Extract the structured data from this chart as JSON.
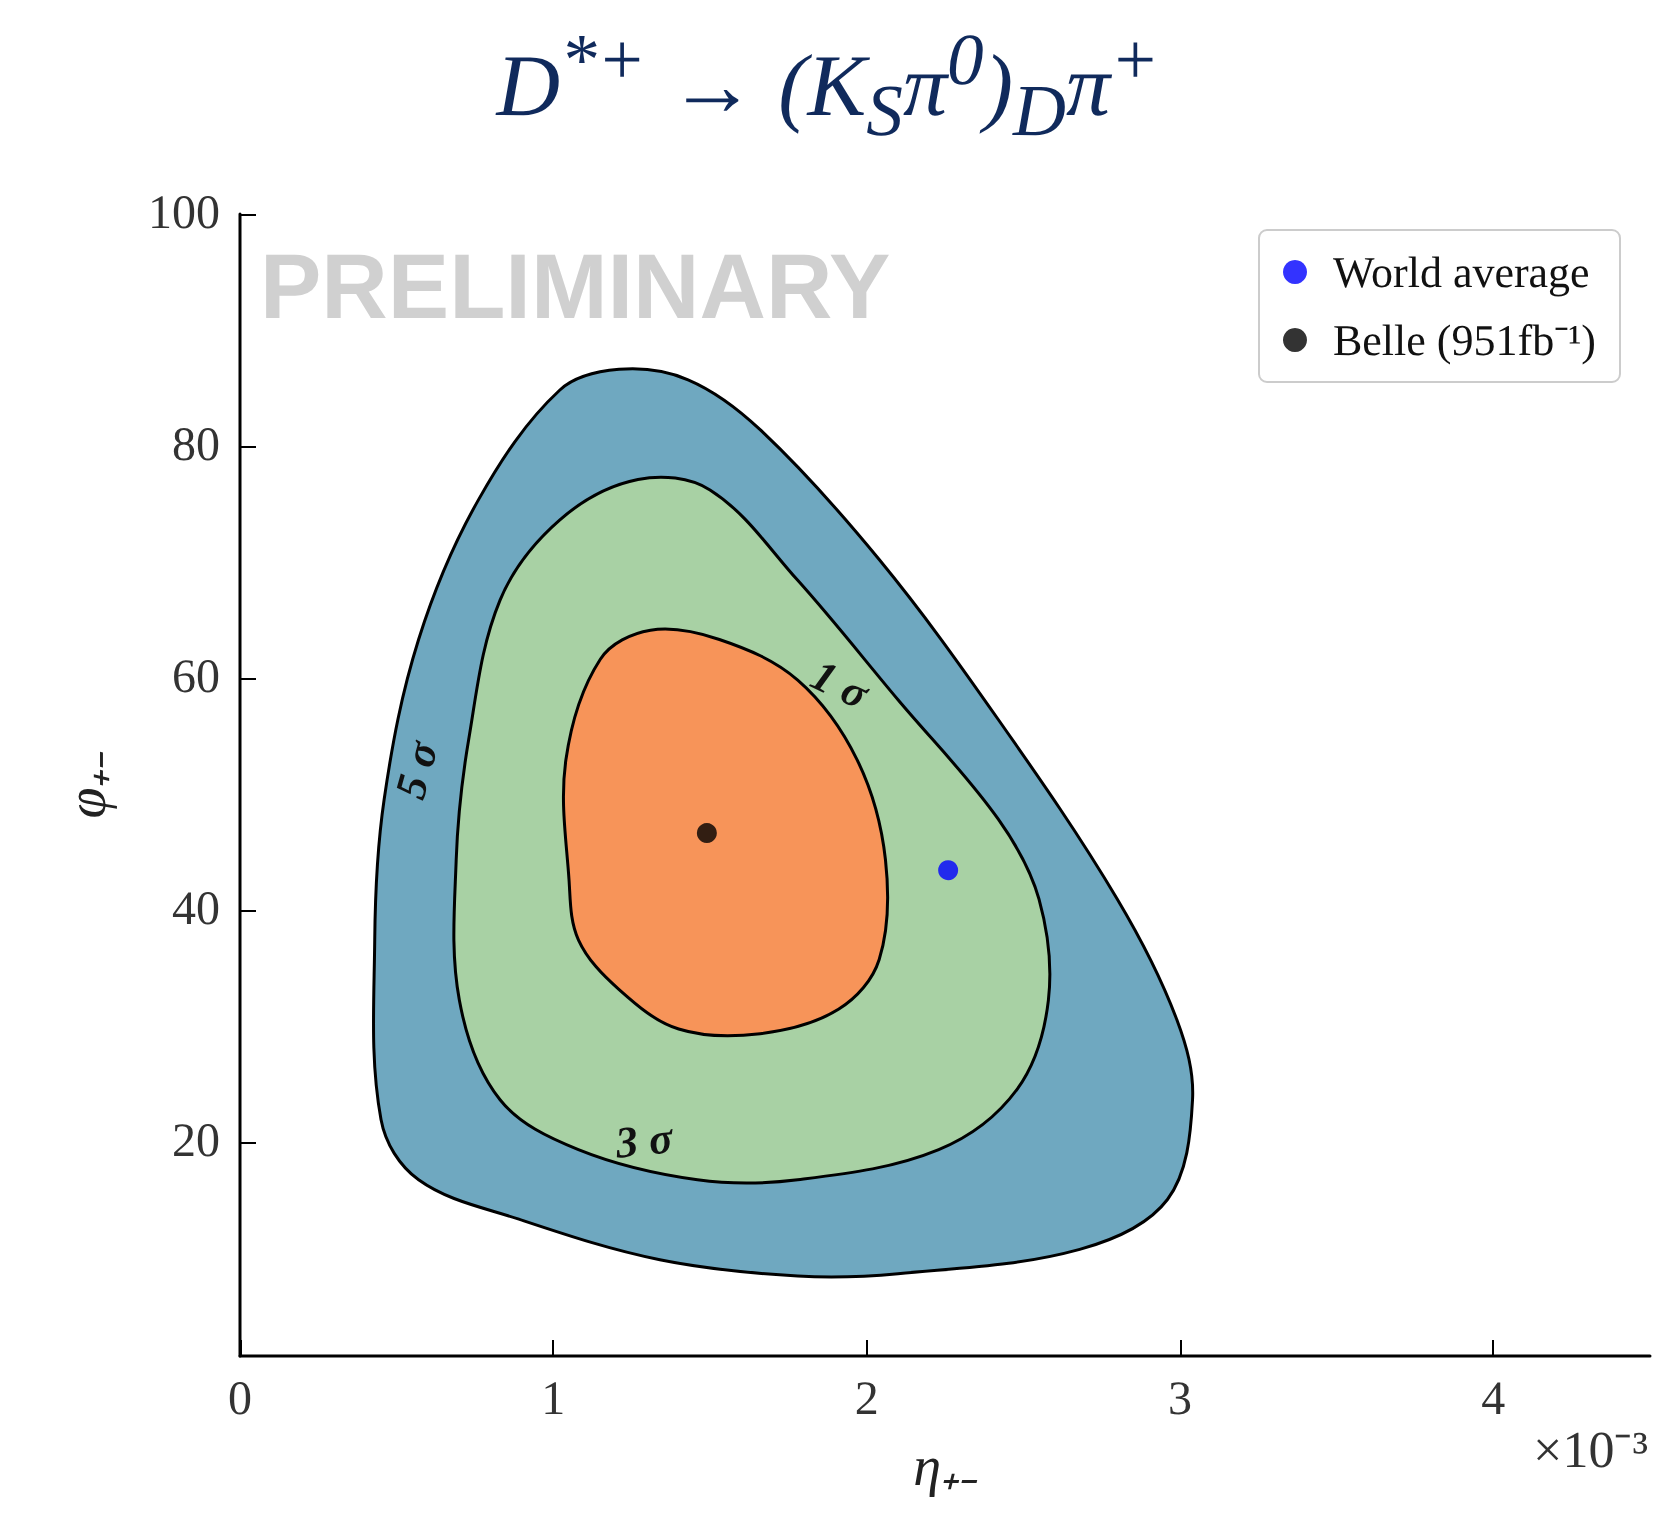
{
  "chart_data": {
    "type": "scatter",
    "title": "D$^{*+}$ → (K$_{S}$π$^{0}$)$_{D}$π$^{+}$",
    "xlabel": "η₊₋",
    "ylabel": "φ₊₋",
    "xlim": [
      0,
      4.5
    ],
    "xticks": [
      0,
      1,
      2,
      3,
      4
    ],
    "ylim": [
      1.5,
      100
    ],
    "yticks": [
      20,
      40,
      60,
      80,
      100
    ],
    "grid": false,
    "legend": "top right",
    "series": [
      {
        "type": "area",
        "color": "#6fa8c0",
        "x": [
          0.45,
          0.43,
          0.46,
          0.57,
          0.76,
          1.02,
          1.21,
          1.43,
          1.66,
          2.04,
          2.42,
          2.8,
          2.99,
          3.04,
          2.96,
          2.68,
          2.1,
          1.78,
          1.34,
          0.89,
          0.57
        ],
        "values": [
          21.9,
          37.4,
          49.5,
          63.3,
          75.3,
          84.8,
          86.6,
          85.7,
          81.4,
          70.2,
          56.4,
          40.9,
          30.5,
          23.6,
          15.0,
          10.7,
          8.6,
          8.4,
          9.8,
          13.3,
          16.7
        ]
      },
      {
        "type": "area",
        "color": "#a8d1a4",
        "x": [
          0.7,
          0.69,
          0.73,
          0.83,
          1.02,
          1.27,
          1.5,
          1.78,
          2.1,
          2.42,
          2.55,
          2.58,
          2.48,
          2.23,
          1.78,
          1.46,
          1.08,
          0.83
        ],
        "values": [
          32.2,
          44.3,
          54.7,
          66.7,
          73.6,
          77.1,
          76.2,
          68.4,
          58.1,
          47.8,
          40.9,
          32.2,
          24.5,
          19.3,
          16.7,
          16.7,
          19.3,
          23.6
        ]
      },
      {
        "type": "area",
        "color": "#f79459",
        "x": [
          1.05,
          1.04,
          1.15,
          1.31,
          1.53,
          1.78,
          1.97,
          2.06,
          2.04,
          1.91,
          1.66,
          1.4,
          1.21,
          1.08
        ],
        "values": [
          42.6,
          52.9,
          61.6,
          64.1,
          63.3,
          59.8,
          52.9,
          44.3,
          35.7,
          31.4,
          29.3,
          29.7,
          33.1,
          37.4
        ]
      },
      {
        "name": "World average",
        "color": "#0000ff",
        "marker": "circle",
        "x": [
          2.26
        ],
        "values": [
          43.4
        ]
      },
      {
        "name": "Belle (951fb⁻¹)",
        "color": "#000000",
        "marker": "circle",
        "x": [
          1.49
        ],
        "values": [
          46.6
        ]
      }
    ],
    "annotations": [
      "PRELIMINARY",
      "1 σ",
      "3 σ",
      "5 σ",
      "×10⁻³"
    ]
  }
}
